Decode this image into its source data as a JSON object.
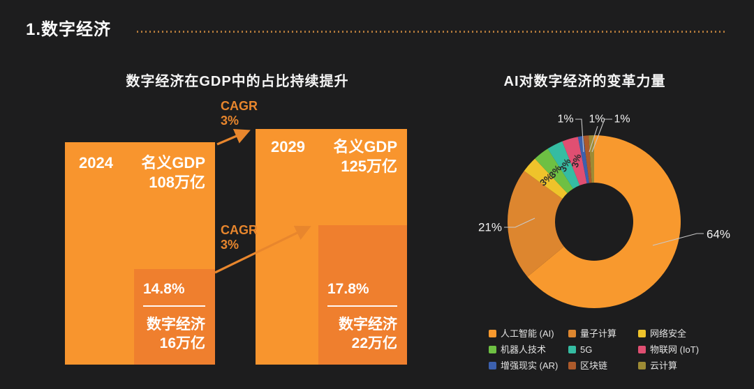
{
  "page": {
    "title": "1.数字经济",
    "background": "#1D1D1E",
    "accent_orange": "#F8952E"
  },
  "left_chart": {
    "title": "数字经济在GDP中的占比持续提升",
    "cagr_top": {
      "line1": "CAGR",
      "line2": "3%"
    },
    "cagr_mid": {
      "line1": "CAGR",
      "line2": "3%"
    },
    "bars": [
      {
        "year": "2024",
        "gdp_label": "名义GDP",
        "gdp_value": "108万亿",
        "pct": "14.8%",
        "de_label": "数字经济",
        "de_value": "16万亿"
      },
      {
        "year": "2029",
        "gdp_label": "名义GDP",
        "gdp_value": "125万亿",
        "pct": "17.8%",
        "de_label": "数字经济",
        "de_value": "22万亿"
      }
    ],
    "colors": {
      "bar": "#F8952E",
      "sub_block": "#EF7F2E",
      "cagr": "#E8862D"
    }
  },
  "right_chart": {
    "title": "AI对数字经济的变革力量"
  },
  "chart_data": [
    {
      "type": "bar",
      "title": "数字经济在GDP中的占比持续提升",
      "categories": [
        "2024",
        "2029"
      ],
      "series": [
        {
          "name": "名义GDP (万亿)",
          "values": [
            108,
            125
          ]
        },
        {
          "name": "数字经济 (万亿)",
          "values": [
            16,
            22
          ]
        },
        {
          "name": "数字经济占GDP比重 (%)",
          "values": [
            14.8,
            17.8
          ]
        }
      ],
      "annotations": [
        "CAGR 3%",
        "CAGR 3%"
      ]
    },
    {
      "type": "pie",
      "title": "AI对数字经济的变革力量",
      "labels": [
        "人工智能 (AI)",
        "量子计算",
        "网络安全",
        "机器人技术",
        "5G",
        "物联网 (IoT)",
        "增强现实 (AR)",
        "区块链",
        "云计算"
      ],
      "values": [
        64,
        21,
        3,
        3,
        3,
        3,
        1,
        1,
        1
      ],
      "unit": "%",
      "colors": [
        "#F8992E",
        "#DD862F",
        "#EFC32B",
        "#6EC043",
        "#35BCA2",
        "#E04F72",
        "#3C60AE",
        "#AC5A2B",
        "#9D8B35"
      ],
      "donut": true,
      "inner_radius_ratio": 0.45,
      "legend_position": "bottom-right"
    }
  ]
}
